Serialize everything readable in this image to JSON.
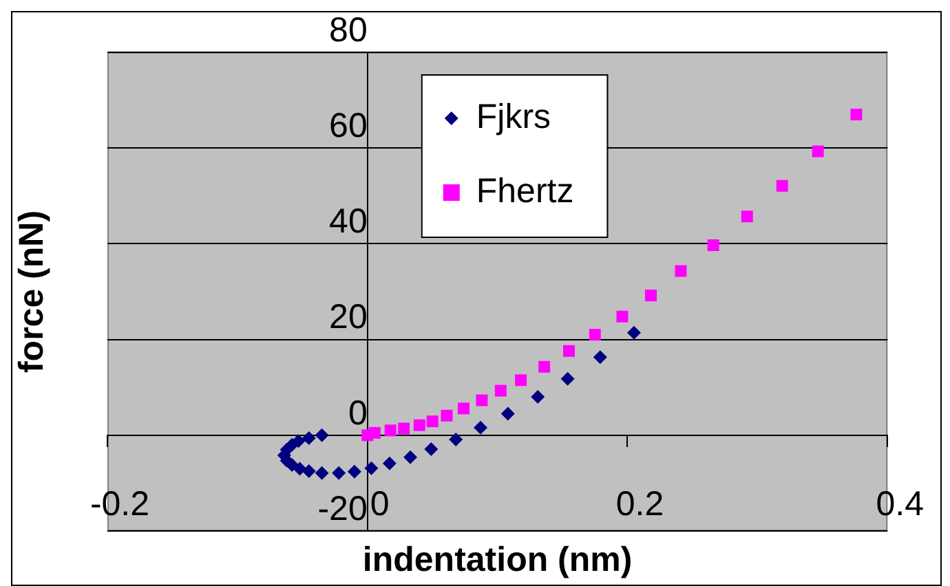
{
  "chart_data": {
    "type": "scatter",
    "xlabel": "indentation (nm)",
    "ylabel": "force (nN)",
    "xlim": [
      -0.2,
      0.4
    ],
    "xticks": [
      -0.2,
      0,
      0.2,
      0.4
    ],
    "ylim": [
      -20,
      80
    ],
    "yticks": [
      -20,
      0,
      20,
      40,
      60,
      80
    ],
    "grid": "y",
    "legend": "top",
    "series": [
      {
        "name": "Fjkrs",
        "color": "#000080",
        "marker": "diamond",
        "x": [
          -0.035,
          -0.045,
          -0.053,
          -0.058,
          -0.062,
          -0.064,
          -0.062,
          -0.058,
          -0.052,
          -0.045,
          -0.035,
          -0.022,
          -0.01,
          0.003,
          0.017,
          0.033,
          0.049,
          0.068,
          0.087,
          0.108,
          0.131,
          0.154,
          0.179,
          0.205
        ],
        "values": [
          0,
          -0.6,
          -1.2,
          -2,
          -3,
          -4.2,
          -5.3,
          -6.2,
          -7,
          -7.5,
          -7.9,
          -7.9,
          -7.6,
          -6.9,
          -5.9,
          -4.6,
          -2.9,
          -0.9,
          1.6,
          4.5,
          8,
          11.8,
          16.3,
          21.4
        ]
      },
      {
        "name": "Fhertz",
        "color": "#ff00ff",
        "marker": "square",
        "x": [
          0,
          0.0056,
          0.0177,
          0.028,
          0.04,
          0.05,
          0.061,
          0.074,
          0.088,
          0.1025,
          0.118,
          0.136,
          0.155,
          0.175,
          0.196,
          0.218,
          0.241,
          0.266,
          0.292,
          0.319,
          0.3465,
          0.376
        ],
        "values": [
          0,
          0.5,
          1,
          1.4,
          2.1,
          2.9,
          4.1,
          5.6,
          7.3,
          9.3,
          11.5,
          14.3,
          17.6,
          21,
          24.8,
          29.2,
          34.3,
          39.7,
          45.7,
          52.1,
          59.3,
          67
        ]
      }
    ]
  }
}
